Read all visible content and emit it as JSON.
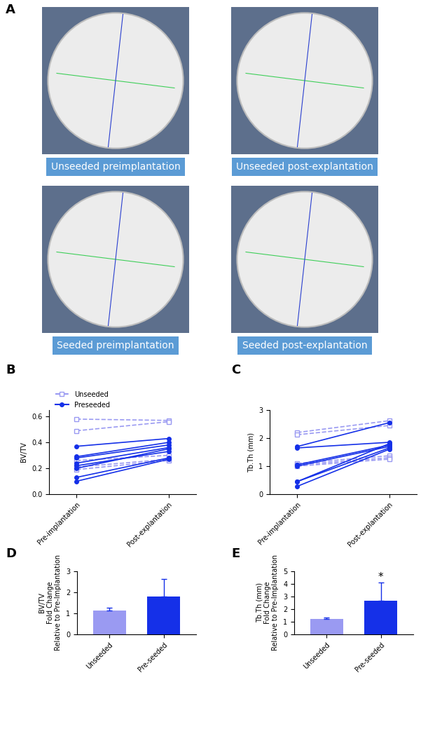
{
  "panel_a": {
    "label": "A",
    "images": [
      "Unseeded preimplantation",
      "Unseeded post-explantation",
      "Seeded preimplantation",
      "Seeded post-explantation"
    ]
  },
  "chart_data": [
    {
      "label": "B",
      "type": "line",
      "ylabel": "BV/TV",
      "categories": [
        "Pre-implantation",
        "Post-explantation"
      ],
      "ylim": [
        0,
        0.65
      ],
      "yticks": [
        {
          "value": 0,
          "label": "0.0"
        },
        {
          "value": 0.2,
          "label": "0.2"
        },
        {
          "value": 0.4,
          "label": "0.4"
        },
        {
          "value": 0.6,
          "label": "0.6"
        }
      ],
      "legend": "upper left",
      "series": [
        {
          "name": "Unseeded",
          "color": "#9a9af2",
          "marker": "square",
          "line_style": "dashed",
          "values": [
            [
              0.58,
              0.57
            ],
            [
              0.49,
              0.56
            ],
            [
              0.26,
              0.3
            ],
            [
              0.21,
              0.27
            ],
            [
              0.19,
              0.26
            ]
          ]
        },
        {
          "name": "Preseeded",
          "color": "#1530e8",
          "marker": "circle",
          "line_style": "solid",
          "values": [
            [
              0.37,
              0.43
            ],
            [
              0.29,
              0.4
            ],
            [
              0.28,
              0.38
            ],
            [
              0.24,
              0.36
            ],
            [
              0.22,
              0.33
            ],
            [
              0.2,
              0.35
            ],
            [
              0.13,
              0.28
            ],
            [
              0.1,
              0.27
            ]
          ]
        }
      ]
    },
    {
      "label": "C",
      "type": "line",
      "ylabel": "Tb.Th (mm)",
      "categories": [
        "Pre-implantation",
        "Post-explantation"
      ],
      "ylim": [
        0,
        3
      ],
      "yticks": [
        0,
        1,
        2,
        3
      ],
      "series": [
        {
          "name": "Unseeded",
          "color": "#9a9af2",
          "marker": "square",
          "line_style": "dashed",
          "values": [
            [
              2.2,
              2.62
            ],
            [
              2.12,
              2.45
            ],
            [
              1.1,
              1.37
            ],
            [
              1.05,
              1.3
            ],
            [
              1.0,
              1.25
            ]
          ]
        },
        {
          "name": "Preseeded",
          "color": "#1530e8",
          "marker": "circle",
          "line_style": "solid",
          "values": [
            [
              1.7,
              2.55
            ],
            [
              1.65,
              1.85
            ],
            [
              1.05,
              1.75
            ],
            [
              1.0,
              1.7
            ],
            [
              0.45,
              1.8
            ],
            [
              0.45,
              1.65
            ],
            [
              0.28,
              1.6
            ]
          ]
        }
      ]
    },
    {
      "label": "D",
      "type": "bar",
      "ylabel": "BV/TV\nFold Change\nRelative to Pre-Implantation",
      "categories": [
        "Unseeded",
        "Pre-seeded"
      ],
      "values": [
        1.13,
        1.8
      ],
      "errors": [
        0.13,
        0.85
      ],
      "colors": [
        "#9a9af2",
        "#1530e8"
      ],
      "ylim": [
        0,
        3
      ],
      "yticks": [
        0,
        1,
        2,
        3
      ]
    },
    {
      "label": "E",
      "type": "bar",
      "ylabel": "Tb.Th (mm)\nFold Change\nRelative to Pre-Implantation",
      "categories": [
        "Unseeded",
        "Pre-seeded"
      ],
      "values": [
        1.2,
        2.65
      ],
      "errors": [
        0.12,
        1.45
      ],
      "colors": [
        "#9a9af2",
        "#1530e8"
      ],
      "ylim": [
        0,
        5
      ],
      "yticks": [
        0,
        1,
        2,
        3,
        4,
        5
      ],
      "annotations": [
        {
          "text": "*",
          "category": "Pre-seeded"
        }
      ]
    }
  ]
}
